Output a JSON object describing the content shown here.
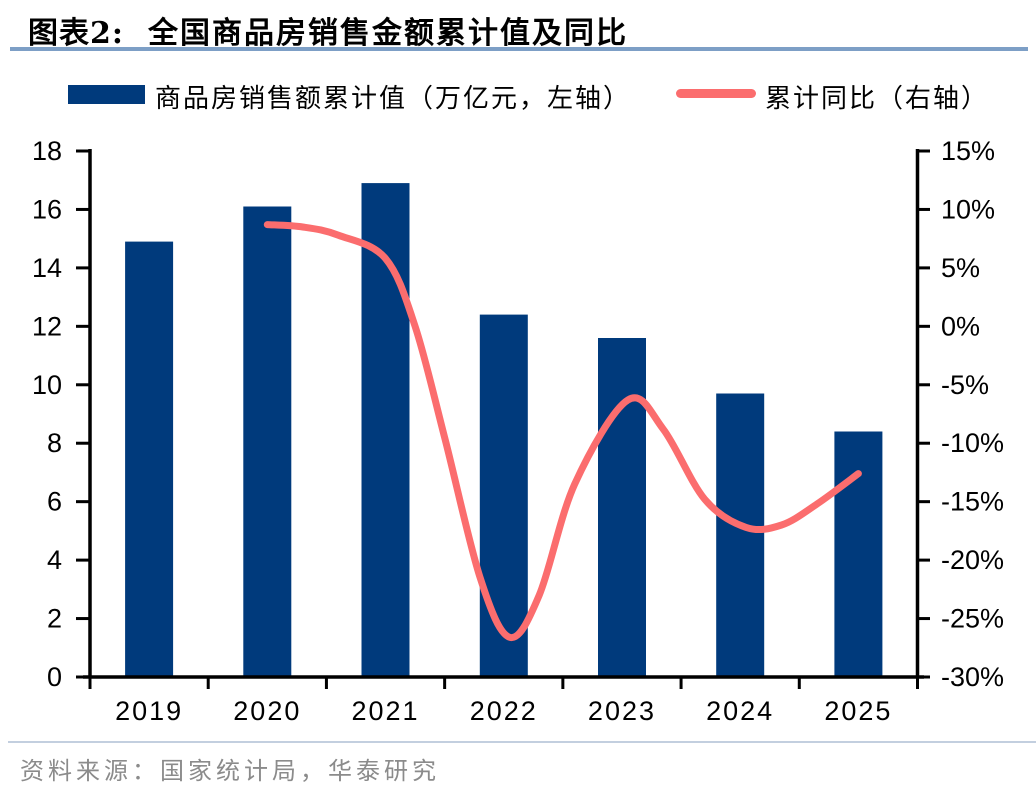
{
  "header": {
    "figure_label": "图表2:",
    "title": "全国商品房销售金额累计值及同比"
  },
  "legend": [
    {
      "type": "bar",
      "label": "商品房销售额累计值（万亿元，左轴）",
      "color": "#003a7c"
    },
    {
      "type": "line",
      "label": "累计同比（右轴）",
      "color": "#fb6d6e"
    }
  ],
  "footer": {
    "source": "资料来源：国家统计局，华泰研究"
  },
  "colors": {
    "bar": "#003a7c",
    "line": "#fb6d6e",
    "axis": "#000000",
    "title_underline": "#7d9fc6",
    "footer_divider": "#c3cfdf",
    "source_text": "#8b8b8b"
  },
  "chart_data": {
    "type": "bar",
    "subtype": "combo bar + smooth line, dual axis",
    "title": "全国商品房销售金额累计值及同比",
    "categories": [
      "2019",
      "2020",
      "2021",
      "2022",
      "2023",
      "2024",
      "2025"
    ],
    "series": [
      {
        "name": "商品房销售额累计值（万亿元，左轴）",
        "type": "bar",
        "axis": "left",
        "color": "#003a7c",
        "values": [
          14.9,
          16.1,
          16.9,
          12.4,
          11.6,
          9.7,
          8.4
        ]
      },
      {
        "name": "累计同比（右轴）",
        "type": "line",
        "axis": "right",
        "color": "#fb6d6e",
        "values": [
          null,
          8.7,
          5.8,
          -26.6,
          -6.3,
          -17.2,
          -12.6
        ],
        "curve_samples": [
          [
            1.0,
            8.7
          ],
          [
            1.3,
            8.5
          ],
          [
            1.6,
            7.8
          ],
          [
            2.0,
            5.8
          ],
          [
            2.25,
            0.0
          ],
          [
            2.5,
            -9.5
          ],
          [
            2.8,
            -21.5
          ],
          [
            3.05,
            -26.6
          ],
          [
            3.3,
            -23.0
          ],
          [
            3.6,
            -13.5
          ],
          [
            4.05,
            -6.3
          ],
          [
            4.35,
            -8.8
          ],
          [
            4.7,
            -14.8
          ],
          [
            5.05,
            -17.2
          ],
          [
            5.35,
            -17.0
          ],
          [
            5.65,
            -15.2
          ],
          [
            6.0,
            -12.6
          ]
        ]
      }
    ],
    "left_axis": {
      "min": 0,
      "max": 18,
      "step": 2,
      "ticks": [
        "18",
        "16",
        "14",
        "12",
        "10",
        "8",
        "6",
        "4",
        "2",
        "0"
      ]
    },
    "right_axis": {
      "min": -30,
      "max": 15,
      "step": 5,
      "ticks": [
        "15%",
        "10%",
        "5%",
        "0%",
        "-5%",
        "-10%",
        "-15%",
        "-20%",
        "-25%",
        "-30%"
      ]
    },
    "grid": false,
    "legend_position": "top"
  }
}
